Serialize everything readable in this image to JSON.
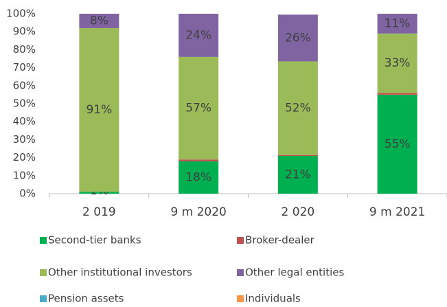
{
  "chart_data": {
    "type": "stacked_bar",
    "categories": [
      "2 019",
      "9 m 2020",
      "2 020",
      "9 m 2021"
    ],
    "series": [
      {
        "name": "Second-tier banks",
        "color": "#00b050",
        "values": [
          1,
          18,
          21,
          55
        ],
        "value_labels": [
          "1%",
          "18%",
          "21%",
          "55%"
        ]
      },
      {
        "name": "Broker-dealer",
        "color": "#c0504d",
        "values": [
          0,
          1,
          0.5,
          1
        ]
      },
      {
        "name": "Other institutional investors",
        "color": "#9bbb59",
        "values": [
          91,
          57,
          52,
          33
        ],
        "value_labels": [
          "91%",
          "57%",
          "52%",
          "33%"
        ]
      },
      {
        "name": "Other legal entities",
        "color": "#8064a2",
        "values": [
          8,
          24,
          26,
          11
        ],
        "value_labels": [
          "8%",
          "24%",
          "26%",
          "11%"
        ]
      },
      {
        "name": "Pension assets",
        "color": "#4bacc6",
        "values": [
          0,
          0,
          0,
          0
        ]
      },
      {
        "name": "Individuals",
        "color": "#f79646",
        "values": [
          0,
          0,
          0,
          0
        ]
      }
    ],
    "ylim": [
      0,
      100
    ],
    "yticks": [
      {
        "value": 0,
        "label": "0%"
      },
      {
        "value": 10,
        "label": "10%"
      },
      {
        "value": 20,
        "label": "20%"
      },
      {
        "value": 30,
        "label": "30%"
      },
      {
        "value": 40,
        "label": "40%"
      },
      {
        "value": 50,
        "label": "50%"
      },
      {
        "value": 60,
        "label": "60%"
      },
      {
        "value": 70,
        "label": "70%"
      },
      {
        "value": 80,
        "label": "80%"
      },
      {
        "value": 90,
        "label": "90%"
      },
      {
        "value": 100,
        "label": "100%"
      }
    ],
    "legend": "bottom"
  }
}
